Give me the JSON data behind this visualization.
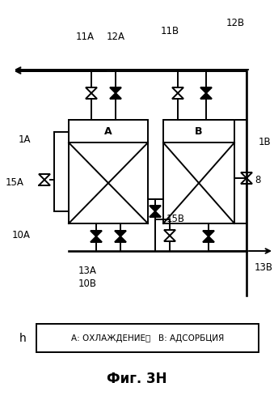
{
  "title": "Фиг. 3Н",
  "legend_text": "А: ОХЛАЖДЕНИЕ、   В: АДСОРБЦИЯ",
  "legend_label": "h",
  "bg_color": "#ffffff",
  "line_color": "#000000",
  "box_A_label": "A",
  "box_B_label": "B",
  "figsize": [
    3.39,
    4.99
  ],
  "dpi": 100
}
